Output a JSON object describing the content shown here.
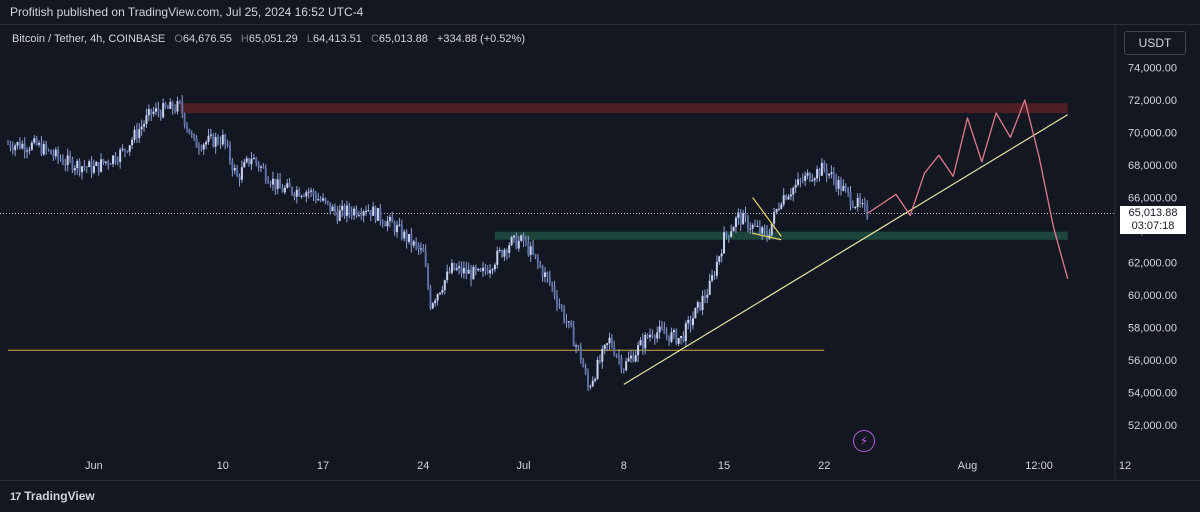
{
  "header": {
    "publish_text": "Profitish published on TradingView.com, Jul 25, 2024 16:52 UTC-4"
  },
  "legend": {
    "symbol": "Bitcoin / Tether, 4h, COINBASE",
    "open_label": "O",
    "open": "64,676.55",
    "high_label": "H",
    "high": "65,051.29",
    "low_label": "L",
    "low": "64,413.51",
    "close_label": "C",
    "close": "65,013.88",
    "change": "+334.88 (+0.52%)"
  },
  "currency_button": "USDT",
  "price_tag": {
    "price": "65,013.88",
    "countdown": "03:07:18"
  },
  "footer": {
    "brand": "TradingView"
  },
  "colors": {
    "background": "#131722",
    "candle": "#8ea1d8",
    "resistance_zone": "#5a2127",
    "support_zone": "#1f4a3e",
    "trendline": "#e8e2a0",
    "horizontal_line": "#d4a94a",
    "projection": "#e07b8a"
  },
  "icons": {
    "alert": "lightning-icon",
    "brand": "tradingview-logo-icon"
  },
  "chart_data": {
    "type": "candlestick",
    "title": "Bitcoin / Tether, 4h, COINBASE",
    "y_ticks": [
      52000,
      54000,
      56000,
      58000,
      60000,
      62000,
      64000,
      66000,
      68000,
      70000,
      72000,
      74000
    ],
    "y_tick_labels": [
      "52,000.00",
      "54,000.00",
      "56,000.00",
      "58,000.00",
      "60,000.00",
      "62,000.00",
      "64,000.00",
      "66,000.00",
      "68,000.00",
      "70,000.00",
      "72,000.00",
      "74,000.00"
    ],
    "ylim": [
      51000,
      75000
    ],
    "x_ticks": [
      "Jun",
      "10",
      "17",
      "24",
      "Jul",
      "8",
      "15",
      "22",
      "Aug",
      "12:00",
      "12"
    ],
    "x_range": [
      "2024-05-26",
      "2024-08-12"
    ],
    "price_path": [
      [
        "2024-05-26",
        69300
      ],
      [
        "2024-05-28",
        69200
      ],
      [
        "2024-05-30",
        68200
      ],
      [
        "2024-06-01",
        67800
      ],
      [
        "2024-06-03",
        68800
      ],
      [
        "2024-06-05",
        71200
      ],
      [
        "2024-06-07",
        71600
      ],
      [
        "2024-06-08",
        69300
      ],
      [
        "2024-06-10",
        69600
      ],
      [
        "2024-06-11",
        67200
      ],
      [
        "2024-06-12",
        68500
      ],
      [
        "2024-06-14",
        66500
      ],
      [
        "2024-06-16",
        66400
      ],
      [
        "2024-06-18",
        65000
      ],
      [
        "2024-06-20",
        65400
      ],
      [
        "2024-06-22",
        64200
      ],
      [
        "2024-06-24",
        62500
      ],
      [
        "2024-06-24T12:00",
        59500
      ],
      [
        "2024-06-26",
        61600
      ],
      [
        "2024-06-28",
        61200
      ],
      [
        "2024-06-30",
        63200
      ],
      [
        "2024-07-01",
        63300
      ],
      [
        "2024-07-03",
        60500
      ],
      [
        "2024-07-05",
        56200
      ],
      [
        "2024-07-05T12:00",
        54300
      ],
      [
        "2024-07-07",
        57200
      ],
      [
        "2024-07-08",
        55600
      ],
      [
        "2024-07-10",
        57800
      ],
      [
        "2024-07-12",
        57300
      ],
      [
        "2024-07-14",
        60500
      ],
      [
        "2024-07-15",
        63500
      ],
      [
        "2024-07-16",
        64800
      ],
      [
        "2024-07-18",
        63600
      ],
      [
        "2024-07-19",
        66000
      ],
      [
        "2024-07-21",
        67400
      ],
      [
        "2024-07-22",
        67800
      ],
      [
        "2024-07-24",
        65800
      ],
      [
        "2024-07-25",
        65014
      ]
    ],
    "current_price": 65013.88,
    "resistance_zone": {
      "from": "2024-06-07",
      "to": "2024-08-08",
      "low": 71200,
      "high": 71800
    },
    "support_zone": {
      "from": "2024-06-29",
      "to": "2024-08-08",
      "low": 63400,
      "high": 63900
    },
    "horizontal_line": {
      "from": "2024-05-26",
      "to": "2024-07-22",
      "price": 56600
    },
    "trendline": {
      "from": [
        "2024-07-08",
        54500
      ],
      "to": [
        "2024-08-08",
        71100
      ]
    },
    "wedge": {
      "top": [
        [
          "2024-07-17",
          66000
        ],
        [
          "2024-07-19",
          63600
        ]
      ],
      "bottom": [
        [
          "2024-07-17",
          63800
        ],
        [
          "2024-07-19",
          63400
        ]
      ]
    },
    "projection": [
      [
        "2024-07-25",
        65014
      ],
      [
        "2024-07-26",
        65600
      ],
      [
        "2024-07-27",
        66200
      ],
      [
        "2024-07-28",
        64900
      ],
      [
        "2024-07-29",
        67500
      ],
      [
        "2024-07-30",
        68600
      ],
      [
        "2024-07-31",
        67300
      ],
      [
        "2024-08-01",
        70900
      ],
      [
        "2024-08-02",
        68200
      ],
      [
        "2024-08-03",
        71200
      ],
      [
        "2024-08-04",
        69700
      ],
      [
        "2024-08-05",
        72000
      ],
      [
        "2024-08-06",
        68500
      ],
      [
        "2024-08-07",
        64200
      ],
      [
        "2024-08-08",
        61000
      ]
    ]
  }
}
